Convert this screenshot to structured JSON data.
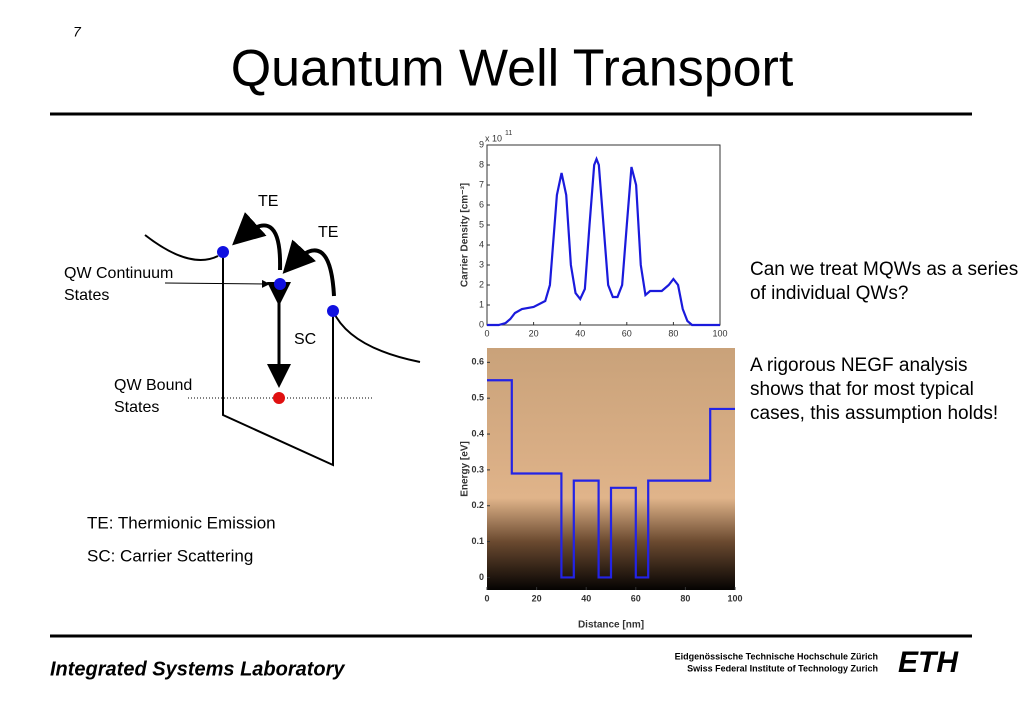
{
  "slide": {
    "page_number": "7",
    "title": "Quantum Well Transport",
    "diagram": {
      "te_left": "TE",
      "te_right": "TE",
      "continuum_line1": "QW Continuum",
      "continuum_line2": "States",
      "sc": "SC",
      "bound_line1": "QW Bound",
      "bound_line2": "States"
    },
    "legend_items": [
      "TE: Thermionic Emission",
      "SC: Carrier Scattering"
    ],
    "paragraphs": [
      "Can we treat MQWs as a series of individual QWs?",
      "A rigorous NEGF analysis shows that for most typical cases, this assumption holds!"
    ],
    "footer": {
      "lab": "Integrated Systems Laboratory",
      "institute_line1": "Eidgenössische Technische Hochschule Zürich",
      "institute_line2": "Swiss Federal Institute of Technology Zurich",
      "logo": "ETH"
    }
  },
  "chart_data": [
    {
      "type": "line",
      "y_label": "Carrier Density [cm⁻³]",
      "y_scale_label": "x 10",
      "y_scale_exponent": "11",
      "x": [
        0,
        5,
        8,
        10,
        12,
        15,
        20,
        25,
        27,
        29,
        30,
        32,
        34,
        36,
        38,
        40,
        42,
        44,
        46,
        47,
        48,
        50,
        52,
        54,
        56,
        58,
        60,
        62,
        64,
        66,
        68,
        70,
        75,
        78,
        80,
        82,
        84,
        86,
        88,
        90,
        95,
        100
      ],
      "series": [
        {
          "color": "#1a1adc",
          "values": [
            0,
            0,
            0.1,
            0.3,
            0.6,
            0.8,
            0.9,
            1.2,
            2,
            5,
            6.5,
            7.6,
            6.5,
            3,
            1.6,
            1.3,
            1.8,
            5,
            8,
            8.3,
            8,
            5,
            2,
            1.4,
            1.4,
            2,
            5,
            7.9,
            7,
            3,
            1.5,
            1.7,
            1.7,
            2,
            2.3,
            2,
            0.8,
            0.2,
            0,
            0,
            0,
            0
          ]
        }
      ],
      "xlim": [
        0,
        100
      ],
      "ylim": [
        0,
        9
      ],
      "xticks": [
        0,
        20,
        40,
        60,
        80,
        100
      ],
      "yticks": [
        0,
        1,
        2,
        3,
        4,
        5,
        6,
        7,
        8,
        9
      ]
    },
    {
      "type": "line",
      "x_label": "Distance [nm]",
      "y_label": "Energy [eV]",
      "x": [
        0,
        10,
        10,
        30,
        30,
        35,
        35,
        45,
        45,
        50,
        50,
        60,
        60,
        65,
        65,
        90,
        90,
        100
      ],
      "series": [
        {
          "color": "#2323e6",
          "values": [
            0.55,
            0.55,
            0.29,
            0.29,
            0,
            0,
            0.27,
            0.27,
            0,
            0,
            0.25,
            0.25,
            0,
            0,
            0.27,
            0.27,
            0.47,
            0.47
          ]
        }
      ],
      "xlim": [
        0,
        100
      ],
      "ylim": [
        -0.035,
        0.64
      ],
      "xticks": [
        0,
        20,
        40,
        60,
        80,
        100
      ],
      "yticks": [
        0,
        0.1,
        0.2,
        0.3,
        0.4,
        0.5,
        0.6
      ]
    }
  ]
}
